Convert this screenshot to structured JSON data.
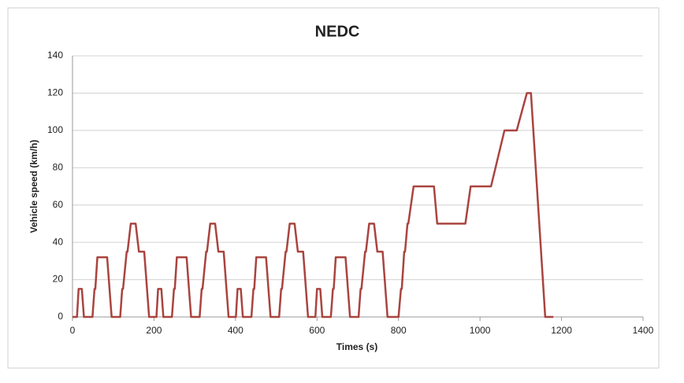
{
  "chart_data": {
    "type": "line",
    "title": "NEDC",
    "x_label": "Times (s)",
    "y_label": "Vehicle speed (km/h)",
    "x": [
      0,
      11,
      15,
      23,
      28,
      49,
      54,
      56,
      61,
      85,
      96,
      117,
      122,
      124,
      133,
      135,
      143,
      155,
      163,
      176,
      188,
      195,
      206,
      210,
      218,
      223,
      244,
      249,
      251,
      256,
      280,
      291,
      312,
      317,
      319,
      328,
      330,
      338,
      350,
      358,
      371,
      383,
      390,
      401,
      405,
      413,
      418,
      439,
      444,
      446,
      451,
      475,
      486,
      507,
      512,
      514,
      523,
      525,
      533,
      545,
      553,
      566,
      578,
      585,
      596,
      600,
      608,
      613,
      634,
      639,
      641,
      646,
      670,
      681,
      702,
      707,
      709,
      718,
      720,
      728,
      740,
      748,
      761,
      773,
      780,
      800,
      806,
      808,
      814,
      816,
      822,
      824,
      837,
      887,
      895,
      964,
      977,
      1027,
      1060,
      1090,
      1115,
      1125,
      1160,
      1180
    ],
    "values": [
      0,
      0,
      15,
      15,
      0,
      0,
      15,
      15,
      32,
      32,
      0,
      0,
      15,
      15,
      35,
      35,
      50,
      50,
      35,
      35,
      0,
      0,
      0,
      15,
      15,
      0,
      0,
      15,
      15,
      32,
      32,
      0,
      0,
      15,
      15,
      35,
      35,
      50,
      50,
      35,
      35,
      0,
      0,
      0,
      15,
      15,
      0,
      0,
      15,
      15,
      32,
      32,
      0,
      0,
      15,
      15,
      35,
      35,
      50,
      50,
      35,
      35,
      0,
      0,
      0,
      15,
      15,
      0,
      0,
      15,
      15,
      32,
      32,
      0,
      0,
      15,
      15,
      35,
      35,
      50,
      50,
      35,
      35,
      0,
      0,
      0,
      15,
      15,
      35,
      35,
      50,
      50,
      70,
      70,
      50,
      50,
      70,
      70,
      100,
      100,
      120,
      120,
      0,
      0
    ],
    "color": "#a9443f",
    "xlim": [
      0,
      1400
    ],
    "xticks": [
      0,
      200,
      400,
      600,
      800,
      1000,
      1200,
      1400
    ],
    "ylim": [
      0,
      140
    ],
    "yticks": [
      0,
      20,
      40,
      60,
      80,
      100,
      120,
      140
    ],
    "grid": true
  }
}
